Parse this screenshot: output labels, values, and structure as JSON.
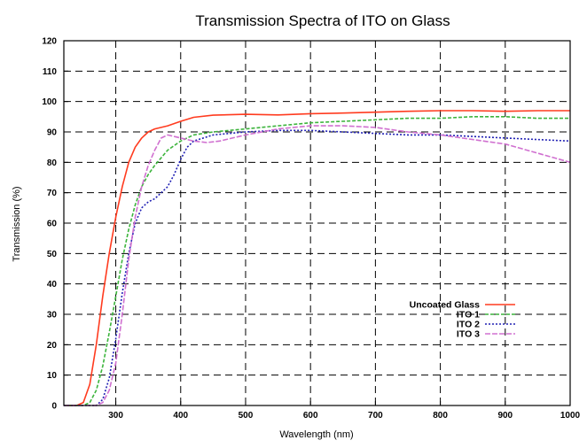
{
  "chart_data": {
    "type": "line",
    "title": "Transmission Spectra of ITO on Glass",
    "xlabel": "Wavelength (nm)",
    "ylabel": "Transmission (%)",
    "xlim": [
      220,
      1000
    ],
    "ylim": [
      0,
      120
    ],
    "xticks": [
      300,
      400,
      500,
      600,
      700,
      800,
      900,
      1000
    ],
    "yticks": [
      0,
      10,
      20,
      30,
      40,
      50,
      60,
      70,
      80,
      90,
      100,
      110,
      120
    ],
    "grid": true,
    "legend_position": "inside-lower-right",
    "series": [
      {
        "name": "Uncoated Glass",
        "color": "#ff3b1f",
        "dash": "solid",
        "points": [
          [
            220,
            0
          ],
          [
            240,
            0
          ],
          [
            250,
            1
          ],
          [
            260,
            7
          ],
          [
            270,
            20
          ],
          [
            280,
            36
          ],
          [
            290,
            50
          ],
          [
            300,
            62
          ],
          [
            310,
            72
          ],
          [
            320,
            80
          ],
          [
            330,
            85
          ],
          [
            340,
            88
          ],
          [
            350,
            90
          ],
          [
            360,
            91
          ],
          [
            380,
            92
          ],
          [
            400,
            93.5
          ],
          [
            420,
            94.8
          ],
          [
            450,
            95.5
          ],
          [
            500,
            95.8
          ],
          [
            550,
            95.6
          ],
          [
            600,
            96
          ],
          [
            650,
            96.2
          ],
          [
            700,
            96.5
          ],
          [
            750,
            96.8
          ],
          [
            800,
            97
          ],
          [
            850,
            97
          ],
          [
            900,
            96.8
          ],
          [
            950,
            97
          ],
          [
            1000,
            97
          ]
        ]
      },
      {
        "name": "ITO 1",
        "color": "#3cb43c",
        "dash": "4 2",
        "points": [
          [
            220,
            0
          ],
          [
            250,
            0
          ],
          [
            260,
            1
          ],
          [
            270,
            5
          ],
          [
            280,
            13
          ],
          [
            290,
            24
          ],
          [
            300,
            36
          ],
          [
            310,
            48
          ],
          [
            320,
            58
          ],
          [
            330,
            66
          ],
          [
            340,
            72
          ],
          [
            350,
            76
          ],
          [
            360,
            79
          ],
          [
            380,
            84
          ],
          [
            400,
            87
          ],
          [
            420,
            89
          ],
          [
            450,
            90
          ],
          [
            500,
            91
          ],
          [
            550,
            92
          ],
          [
            600,
            93
          ],
          [
            650,
            93.5
          ],
          [
            700,
            94
          ],
          [
            750,
            94.5
          ],
          [
            800,
            94.5
          ],
          [
            850,
            95
          ],
          [
            900,
            95
          ],
          [
            950,
            94.5
          ],
          [
            1000,
            94.5
          ]
        ]
      },
      {
        "name": "ITO 2",
        "color": "#2020b4",
        "dash": "2 2",
        "points": [
          [
            220,
            0
          ],
          [
            270,
            0
          ],
          [
            280,
            2
          ],
          [
            290,
            9
          ],
          [
            300,
            22
          ],
          [
            310,
            37
          ],
          [
            320,
            50
          ],
          [
            330,
            60
          ],
          [
            340,
            65
          ],
          [
            350,
            67
          ],
          [
            360,
            68
          ],
          [
            370,
            70
          ],
          [
            380,
            72
          ],
          [
            390,
            76
          ],
          [
            400,
            81
          ],
          [
            410,
            85
          ],
          [
            420,
            87
          ],
          [
            450,
            89
          ],
          [
            500,
            90
          ],
          [
            550,
            90.5
          ],
          [
            600,
            90.5
          ],
          [
            650,
            90
          ],
          [
            700,
            89.5
          ],
          [
            750,
            89
          ],
          [
            800,
            89
          ],
          [
            850,
            88.5
          ],
          [
            900,
            88
          ],
          [
            950,
            87.5
          ],
          [
            1000,
            87
          ]
        ]
      },
      {
        "name": "ITO 3",
        "color": "#d070d0",
        "dash": "6 2",
        "points": [
          [
            220,
            0
          ],
          [
            270,
            0
          ],
          [
            280,
            1
          ],
          [
            290,
            5
          ],
          [
            300,
            14
          ],
          [
            310,
            30
          ],
          [
            320,
            48
          ],
          [
            330,
            62
          ],
          [
            340,
            72
          ],
          [
            350,
            79
          ],
          [
            360,
            84
          ],
          [
            370,
            88
          ],
          [
            380,
            89
          ],
          [
            400,
            88
          ],
          [
            420,
            87
          ],
          [
            440,
            86.5
          ],
          [
            460,
            87
          ],
          [
            500,
            89
          ],
          [
            550,
            91
          ],
          [
            600,
            92
          ],
          [
            650,
            92
          ],
          [
            700,
            91.5
          ],
          [
            750,
            90
          ],
          [
            800,
            89
          ],
          [
            850,
            87.5
          ],
          [
            900,
            86
          ],
          [
            950,
            83
          ],
          [
            1000,
            80
          ]
        ]
      }
    ]
  }
}
